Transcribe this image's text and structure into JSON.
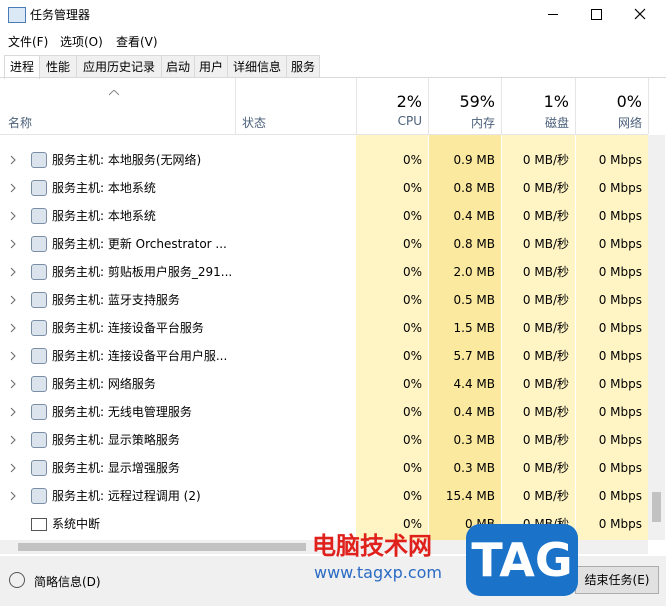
{
  "window": {
    "title": "任务管理器"
  },
  "menu": [
    "文件(F)",
    "选项(O)",
    "查看(V)"
  ],
  "tabs": [
    "进程",
    "性能",
    "应用历史记录",
    "启动",
    "用户",
    "详细信息",
    "服务"
  ],
  "columns": {
    "name": "名称",
    "status": "状态",
    "cpu": {
      "percent": "2%",
      "label": "CPU"
    },
    "memory": {
      "percent": "59%",
      "label": "内存"
    },
    "disk": {
      "percent": "1%",
      "label": "磁盘"
    },
    "network": {
      "percent": "0%",
      "label": "网络"
    }
  },
  "rows": [
    {
      "name": "服务主机: 本地服务(无网络)",
      "cpu": "0%",
      "memory": "0.9 MB",
      "disk": "0 MB/秒",
      "network": "0 Mbps"
    },
    {
      "name": "服务主机: 本地系统",
      "cpu": "0%",
      "memory": "0.8 MB",
      "disk": "0 MB/秒",
      "network": "0 Mbps"
    },
    {
      "name": "服务主机: 本地系统",
      "cpu": "0%",
      "memory": "0.4 MB",
      "disk": "0 MB/秒",
      "network": "0 Mbps"
    },
    {
      "name": "服务主机: 更新 Orchestrator ...",
      "cpu": "0%",
      "memory": "0.8 MB",
      "disk": "0 MB/秒",
      "network": "0 Mbps"
    },
    {
      "name": "服务主机: 剪贴板用户服务_291...",
      "cpu": "0%",
      "memory": "2.0 MB",
      "disk": "0 MB/秒",
      "network": "0 Mbps"
    },
    {
      "name": "服务主机: 蓝牙支持服务",
      "cpu": "0%",
      "memory": "0.5 MB",
      "disk": "0 MB/秒",
      "network": "0 Mbps"
    },
    {
      "name": "服务主机: 连接设备平台服务",
      "cpu": "0%",
      "memory": "1.5 MB",
      "disk": "0 MB/秒",
      "network": "0 Mbps"
    },
    {
      "name": "服务主机: 连接设备平台用户服...",
      "cpu": "0%",
      "memory": "5.7 MB",
      "disk": "0 MB/秒",
      "network": "0 Mbps"
    },
    {
      "name": "服务主机: 网络服务",
      "cpu": "0%",
      "memory": "4.4 MB",
      "disk": "0 MB/秒",
      "network": "0 Mbps"
    },
    {
      "name": "服务主机: 无线电管理服务",
      "cpu": "0%",
      "memory": "0.4 MB",
      "disk": "0 MB/秒",
      "network": "0 Mbps"
    },
    {
      "name": "服务主机: 显示策略服务",
      "cpu": "0%",
      "memory": "0.3 MB",
      "disk": "0 MB/秒",
      "network": "0 Mbps"
    },
    {
      "name": "服务主机: 显示增强服务",
      "cpu": "0%",
      "memory": "0.3 MB",
      "disk": "0 MB/秒",
      "network": "0 Mbps"
    },
    {
      "name": "服务主机: 远程过程调用 (2)",
      "cpu": "0%",
      "memory": "15.4 MB",
      "disk": "0 MB/秒",
      "network": "0 Mbps"
    },
    {
      "name": "系统中断",
      "cpu": "0%",
      "memory": "0 MB",
      "disk": "0 MB/秒",
      "network": "0 Mbps"
    }
  ],
  "footer": {
    "less_details": "简略信息(D)",
    "end_task": "结束任务(E)"
  },
  "watermark": {
    "site_name": "电脑技术网",
    "url": "www.tagxp.com",
    "logo": "TAG"
  }
}
